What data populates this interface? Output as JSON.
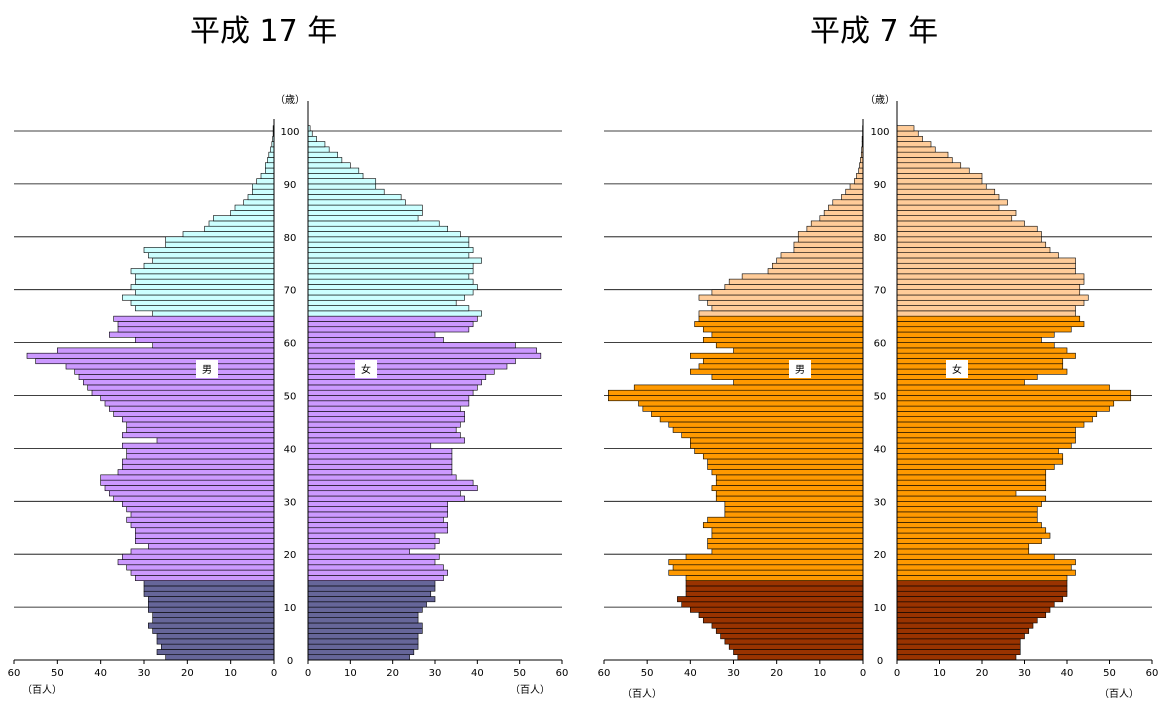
{
  "colors": {
    "left_old": "#ccffff",
    "left_mid": "#cc99ff",
    "left_young": "#666699",
    "right_old": "#ffcc99",
    "right_mid": "#ff9900",
    "right_young": "#993300",
    "bar_border": "#000000",
    "gridline": "#000000"
  },
  "chart_data": [
    {
      "type": "bar",
      "orientation": "horizontal-population-pyramid",
      "title": "平成 17 年",
      "age_unit": "（歳）",
      "value_unit": "（百人）",
      "male_label": "男",
      "female_label": "女",
      "xlim": [
        0,
        60
      ],
      "x_ticks": [
        "60",
        "50",
        "40",
        "30",
        "20",
        "10",
        "0"
      ],
      "x_ticks_female": [
        "0",
        "10",
        "20",
        "30",
        "40",
        "50",
        "60"
      ],
      "y_ticks": [
        "0",
        "10",
        "20",
        "30",
        "40",
        "50",
        "60",
        "70",
        "80",
        "90",
        "100"
      ],
      "age_bands": {
        "young_max": 14,
        "mid_max": 64
      },
      "ages": [
        0,
        1,
        2,
        3,
        4,
        5,
        6,
        7,
        8,
        9,
        10,
        11,
        12,
        13,
        14,
        15,
        16,
        17,
        18,
        19,
        20,
        21,
        22,
        23,
        24,
        25,
        26,
        27,
        28,
        29,
        30,
        31,
        32,
        33,
        34,
        35,
        36,
        37,
        38,
        39,
        40,
        41,
        42,
        43,
        44,
        45,
        46,
        47,
        48,
        49,
        50,
        51,
        52,
        53,
        54,
        55,
        56,
        57,
        58,
        59,
        60,
        61,
        62,
        63,
        64,
        65,
        66,
        67,
        68,
        69,
        70,
        71,
        72,
        73,
        74,
        75,
        76,
        77,
        78,
        79,
        80,
        81,
        82,
        83,
        84,
        85,
        86,
        87,
        88,
        89,
        90,
        91,
        92,
        93,
        94,
        95,
        96,
        97,
        98,
        99,
        100
      ],
      "series": [
        {
          "name": "男",
          "values": [
            25,
            27,
            26,
            27,
            27,
            28,
            29,
            28,
            28,
            29,
            29,
            29,
            30,
            30,
            30,
            32,
            33,
            34,
            36,
            35,
            33,
            29,
            32,
            32,
            32,
            33,
            34,
            33,
            34,
            35,
            37,
            38,
            39,
            40,
            40,
            36,
            35,
            35,
            34,
            34,
            35,
            27,
            35,
            34,
            34,
            35,
            37,
            38,
            39,
            40,
            42,
            43,
            44,
            45,
            46,
            48,
            55,
            57,
            50,
            28,
            32,
            38,
            36,
            36,
            37,
            28,
            32,
            33,
            35,
            32,
            33,
            32,
            32,
            33,
            30,
            28,
            29,
            30,
            25,
            25,
            21,
            16,
            15,
            14,
            10,
            9,
            7,
            6,
            5,
            5,
            4,
            3,
            2,
            2,
            1.5,
            1.2,
            0.8,
            0.5,
            0.3,
            0.2,
            0.2
          ]
        },
        {
          "name": "女",
          "values": [
            24,
            25,
            26,
            26,
            26,
            27,
            27,
            26,
            26,
            27,
            28,
            30,
            29,
            30,
            30,
            32,
            33,
            32,
            30,
            31,
            24,
            30,
            31,
            30,
            33,
            33,
            32,
            33,
            33,
            33,
            37,
            36,
            40,
            39,
            35,
            34,
            34,
            34,
            34,
            34,
            29,
            37,
            36,
            35,
            36,
            37,
            37,
            36,
            38,
            38,
            39,
            40,
            41,
            42,
            44,
            47,
            49,
            55,
            54,
            49,
            32,
            30,
            38,
            39,
            40,
            41,
            38,
            35,
            37,
            39,
            40,
            39,
            38,
            39,
            39,
            41,
            38,
            39,
            38,
            38,
            36,
            33,
            31,
            26,
            27,
            27,
            23,
            22,
            18,
            16,
            16,
            13,
            12,
            10,
            8,
            7,
            5,
            4,
            2,
            1,
            0.5
          ]
        }
      ]
    },
    {
      "type": "bar",
      "orientation": "horizontal-population-pyramid",
      "title": "平成 7 年",
      "age_unit": "（歳）",
      "value_unit": "（百人）",
      "male_label": "男",
      "female_label": "女",
      "xlim": [
        0,
        60
      ],
      "x_ticks": [
        "60",
        "50",
        "40",
        "30",
        "20",
        "10",
        "0"
      ],
      "x_ticks_female": [
        "0",
        "10",
        "20",
        "30",
        "40",
        "50",
        "60"
      ],
      "y_ticks": [
        "0",
        "10",
        "20",
        "30",
        "40",
        "50",
        "60",
        "70",
        "80",
        "90",
        "100"
      ],
      "age_bands": {
        "young_max": 14,
        "mid_max": 64
      },
      "ages": [
        0,
        1,
        2,
        3,
        4,
        5,
        6,
        7,
        8,
        9,
        10,
        11,
        12,
        13,
        14,
        15,
        16,
        17,
        18,
        19,
        20,
        21,
        22,
        23,
        24,
        25,
        26,
        27,
        28,
        29,
        30,
        31,
        32,
        33,
        34,
        35,
        36,
        37,
        38,
        39,
        40,
        41,
        42,
        43,
        44,
        45,
        46,
        47,
        48,
        49,
        50,
        51,
        52,
        53,
        54,
        55,
        56,
        57,
        58,
        59,
        60,
        61,
        62,
        63,
        64,
        65,
        66,
        67,
        68,
        69,
        70,
        71,
        72,
        73,
        74,
        75,
        76,
        77,
        78,
        79,
        80,
        81,
        82,
        83,
        84,
        85,
        86,
        87,
        88,
        89,
        90,
        91,
        92,
        93,
        94,
        95,
        96,
        97,
        98,
        99,
        100
      ],
      "series": [
        {
          "name": "男",
          "values": [
            29,
            30,
            31,
            32,
            33,
            34,
            35,
            37,
            38,
            40,
            42,
            43,
            41,
            41,
            41,
            41,
            45,
            44,
            45,
            41,
            35,
            36,
            36,
            35,
            35,
            37,
            36,
            32,
            32,
            32,
            34,
            34,
            35,
            34,
            34,
            35,
            36,
            36,
            37,
            39,
            40,
            40,
            42,
            44,
            45,
            47,
            49,
            51,
            52,
            59,
            59,
            53,
            30,
            35,
            40,
            38,
            37,
            40,
            30,
            34,
            37,
            35,
            37,
            39,
            38,
            38,
            35,
            36,
            38,
            35,
            32,
            31,
            28,
            22,
            21,
            20,
            19,
            16,
            16,
            15,
            15,
            13,
            12,
            10,
            9,
            8,
            7,
            5,
            4,
            3,
            2,
            1.5,
            1,
            0.8,
            0.6,
            0.4,
            0.3,
            0.2,
            0.2,
            0.1,
            0.1
          ]
        },
        {
          "name": "女",
          "values": [
            28,
            29,
            29,
            29,
            30,
            31,
            32,
            33,
            35,
            36,
            37,
            39,
            40,
            40,
            40,
            40,
            42,
            41,
            42,
            37,
            31,
            31,
            34,
            36,
            35,
            34,
            33,
            33,
            33,
            34,
            35,
            28,
            35,
            35,
            35,
            35,
            37,
            39,
            39,
            38,
            41,
            42,
            42,
            42,
            44,
            46,
            47,
            50,
            51,
            55,
            55,
            50,
            30,
            33,
            40,
            39,
            39,
            42,
            40,
            37,
            34,
            37,
            41,
            44,
            43,
            42,
            42,
            44,
            45,
            43,
            43,
            44,
            44,
            42,
            42,
            42,
            38,
            36,
            35,
            34,
            34,
            33,
            30,
            27,
            28,
            24,
            26,
            24,
            23,
            21,
            20,
            20,
            17,
            15,
            13,
            12,
            9,
            8,
            6,
            5,
            4
          ]
        }
      ]
    }
  ]
}
